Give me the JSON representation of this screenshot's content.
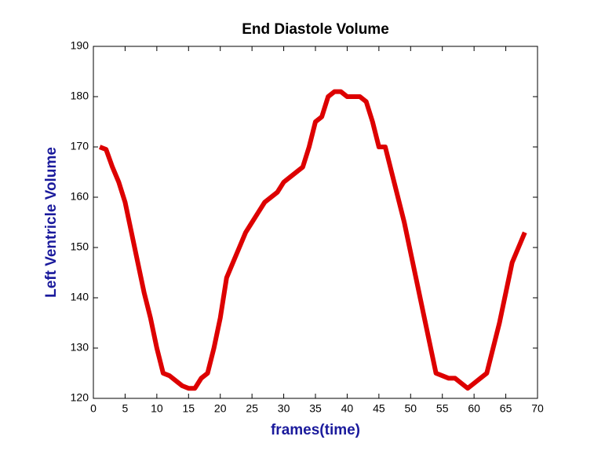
{
  "chart_data": {
    "type": "line",
    "title": "End Diastole Volume",
    "x_label": "frames(time)",
    "y_label": "Left Ventricle Volume",
    "label_color": "#1a1a9c",
    "x": [
      1,
      2,
      3,
      4,
      5,
      6,
      7,
      8,
      9,
      10,
      11,
      12,
      13,
      14,
      15,
      16,
      17,
      18,
      19,
      20,
      21,
      22,
      23,
      24,
      25,
      26,
      27,
      28,
      29,
      30,
      31,
      32,
      33,
      34,
      35,
      36,
      37,
      38,
      39,
      40,
      41,
      42,
      43,
      44,
      45,
      46,
      47,
      48,
      49,
      50,
      51,
      52,
      53,
      54,
      55,
      56,
      57,
      58,
      59,
      60,
      61,
      62,
      63,
      64,
      65,
      66,
      67,
      68
    ],
    "series": [
      {
        "name": "Left Ventricle Volume",
        "color": "#dd0000",
        "values": [
          170,
          169.5,
          166,
          163,
          159,
          153,
          147,
          141,
          136,
          130,
          125,
          124.5,
          123.5,
          122.5,
          122,
          122,
          124,
          125,
          130,
          136,
          144,
          147,
          150,
          153,
          155,
          157,
          159,
          160,
          161,
          163,
          164,
          165,
          166,
          170,
          175,
          176,
          180,
          181,
          181,
          180,
          180,
          180,
          179,
          175,
          170,
          170,
          165,
          160,
          155,
          149,
          143,
          137,
          131,
          125,
          124.5,
          124,
          124,
          123,
          122,
          123,
          124,
          125,
          130,
          135,
          141,
          147,
          150,
          153
        ]
      }
    ],
    "xlim": [
      0,
      70
    ],
    "ylim": [
      120,
      190
    ],
    "xticks": [
      0,
      5,
      10,
      15,
      20,
      25,
      30,
      35,
      40,
      45,
      50,
      55,
      60,
      65,
      70
    ],
    "yticks": [
      120,
      130,
      140,
      150,
      160,
      170,
      180,
      190
    ],
    "grid": false
  }
}
